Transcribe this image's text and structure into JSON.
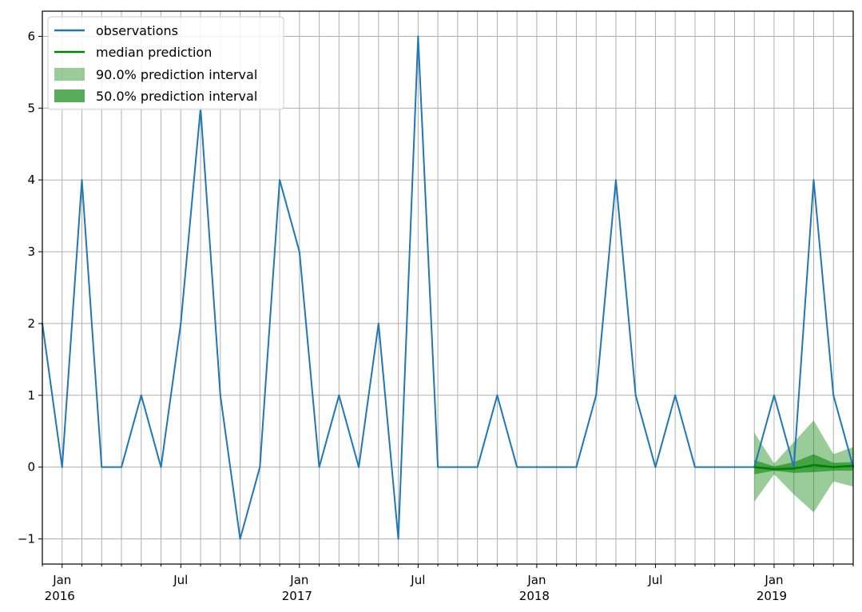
{
  "chart_data": {
    "type": "line",
    "title": "",
    "xlabel": "",
    "ylabel": "",
    "ylim": [
      -1.35,
      6.35
    ],
    "yticks": [
      -1,
      0,
      1,
      2,
      3,
      4,
      5,
      6
    ],
    "ytick_labels": [
      "−1",
      "0",
      "1",
      "2",
      "3",
      "4",
      "5",
      "6"
    ],
    "x_months": [
      "2015-12",
      "2016-01",
      "2016-02",
      "2016-03",
      "2016-04",
      "2016-05",
      "2016-06",
      "2016-07",
      "2016-08",
      "2016-09",
      "2016-10",
      "2016-11",
      "2016-12",
      "2017-01",
      "2017-02",
      "2017-03",
      "2017-04",
      "2017-05",
      "2017-06",
      "2017-07",
      "2017-08",
      "2017-09",
      "2017-10",
      "2017-11",
      "2017-12",
      "2018-01",
      "2018-02",
      "2018-03",
      "2018-04",
      "2018-05",
      "2018-06",
      "2018-07",
      "2018-08",
      "2018-09",
      "2018-10",
      "2018-11",
      "2018-12",
      "2019-01",
      "2019-02",
      "2019-03",
      "2019-04",
      "2019-05"
    ],
    "xlim": [
      "2015-12",
      "2019-05"
    ],
    "xtick_labels": [
      {
        "month": "2016-01",
        "label": "Jan",
        "year": "2016"
      },
      {
        "month": "2016-07",
        "label": "Jul",
        "year": ""
      },
      {
        "month": "2017-01",
        "label": "Jan",
        "year": "2017"
      },
      {
        "month": "2017-07",
        "label": "Jul",
        "year": ""
      },
      {
        "month": "2018-01",
        "label": "Jan",
        "year": "2018"
      },
      {
        "month": "2018-07",
        "label": "Jul",
        "year": ""
      },
      {
        "month": "2019-01",
        "label": "Jan",
        "year": "2019"
      }
    ],
    "grid": true,
    "legend_position": "top-left",
    "legend": [
      "observations",
      "median prediction",
      "90.0% prediction interval",
      "50.0% prediction interval"
    ],
    "series": [
      {
        "name": "observations",
        "color": "#1f77b4",
        "x": [
          "2015-12",
          "2016-01",
          "2016-02",
          "2016-03",
          "2016-04",
          "2016-05",
          "2016-06",
          "2016-07",
          "2016-08",
          "2016-09",
          "2016-10",
          "2016-11",
          "2016-12",
          "2017-01",
          "2017-02",
          "2017-03",
          "2017-04",
          "2017-05",
          "2017-06",
          "2017-07",
          "2017-08",
          "2017-09",
          "2017-10",
          "2017-11",
          "2017-12",
          "2018-01",
          "2018-02",
          "2018-03",
          "2018-04",
          "2018-05",
          "2018-06",
          "2018-07",
          "2018-08",
          "2018-09",
          "2018-10",
          "2018-11",
          "2018-12",
          "2019-01",
          "2019-02",
          "2019-03",
          "2019-04",
          "2019-05"
        ],
        "values": [
          2,
          0,
          4,
          0,
          0,
          1,
          0,
          2,
          5,
          1,
          -1,
          0,
          4,
          3,
          0,
          1,
          0,
          2,
          -1,
          6,
          0,
          0,
          0,
          1,
          0,
          0,
          0,
          0,
          1,
          4,
          1,
          0,
          1,
          0,
          0,
          0,
          0,
          1,
          0,
          4,
          1,
          0
        ]
      },
      {
        "name": "median prediction",
        "color": "#008000",
        "x": [
          "2018-12",
          "2019-01",
          "2019-02",
          "2019-03",
          "2019-04",
          "2019-05"
        ],
        "values": [
          0.0,
          -0.03,
          -0.02,
          0.03,
          0.0,
          0.02
        ]
      }
    ],
    "intervals": [
      {
        "name": "90.0% prediction interval",
        "color": "#008000",
        "opacity": 0.4,
        "x": [
          "2018-12",
          "2019-01",
          "2019-02",
          "2019-03",
          "2019-04",
          "2019-05"
        ],
        "lower": [
          -0.48,
          -0.1,
          -0.38,
          -0.63,
          -0.2,
          -0.27
        ],
        "upper": [
          0.48,
          0.05,
          0.35,
          0.65,
          0.18,
          0.28
        ]
      },
      {
        "name": "50.0% prediction interval",
        "color": "#008000",
        "opacity": 0.55,
        "x": [
          "2018-12",
          "2019-01",
          "2019-02",
          "2019-03",
          "2019-04",
          "2019-05"
        ],
        "lower": [
          -0.1,
          -0.05,
          -0.08,
          -0.07,
          -0.05,
          -0.05
        ],
        "upper": [
          0.1,
          0.01,
          0.07,
          0.18,
          0.06,
          0.07
        ]
      }
    ]
  }
}
